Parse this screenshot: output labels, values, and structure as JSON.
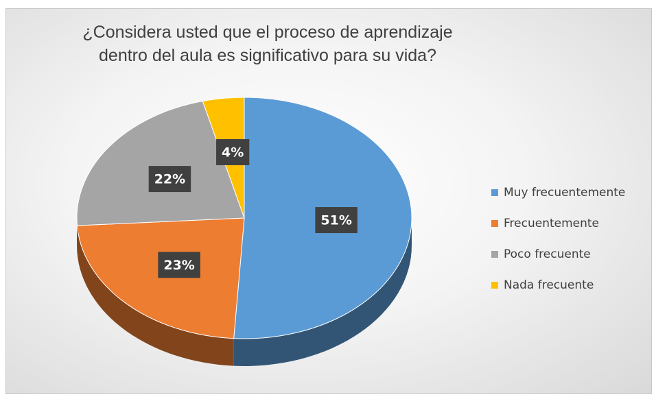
{
  "chart_data": {
    "type": "pie",
    "title": "¿Considera usted que el proceso de aprendizaje dentro del aula es significativo para su vida?",
    "categories": [
      "Muy frecuentemente",
      "Frecuentemente",
      "Poco frecuente",
      "Nada frecuente"
    ],
    "values": [
      51,
      23,
      22,
      4
    ],
    "value_labels": [
      "51%",
      "23%",
      "22%",
      "4%"
    ],
    "colors": [
      "#5b9bd5",
      "#ed7d31",
      "#a5a5a5",
      "#ffc000"
    ],
    "legend": "right"
  }
}
